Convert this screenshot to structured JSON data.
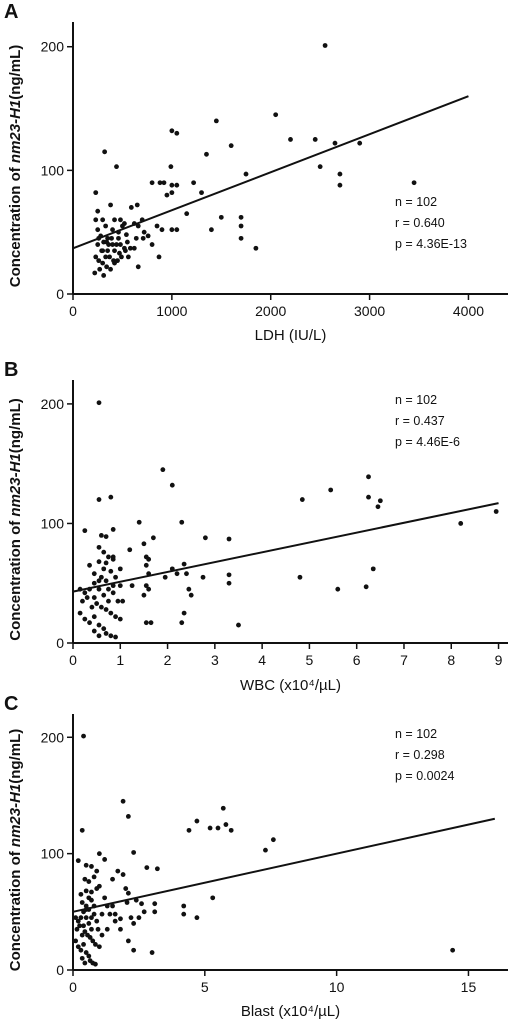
{
  "chart_data": [
    {
      "type": "scatter",
      "panel": "A",
      "xlabel": "LDH (IU/L)",
      "ylabel_parts": [
        "Concentration of ",
        "nm23-H1",
        "(ng/mL)"
      ],
      "xlim": [
        0,
        4400
      ],
      "ylim": [
        0,
        220
      ],
      "xticks": [
        "0",
        "1000",
        "2000",
        "3000",
        "4000"
      ],
      "xtick_values": [
        0,
        1000,
        2000,
        3000,
        4000
      ],
      "yticks": [
        "0",
        "100",
        "200"
      ],
      "ytick_values": [
        0,
        100,
        200
      ],
      "stats": [
        "n = 102",
        "r = 0.640",
        "p = 4.36E-13"
      ],
      "fit": [
        [
          0,
          37
        ],
        [
          4000,
          160
        ]
      ],
      "points": [
        [
          2550,
          201
        ],
        [
          2050,
          145
        ],
        [
          1450,
          140
        ],
        [
          2200,
          125
        ],
        [
          2450,
          125
        ],
        [
          2650,
          122
        ],
        [
          2900,
          122
        ],
        [
          3450,
          90
        ],
        [
          1000,
          132
        ],
        [
          1050,
          130
        ],
        [
          1600,
          120
        ],
        [
          1350,
          113
        ],
        [
          320,
          115
        ],
        [
          440,
          103
        ],
        [
          990,
          103
        ],
        [
          1750,
          97
        ],
        [
          2700,
          97
        ],
        [
          2700,
          88
        ],
        [
          2500,
          103
        ],
        [
          1850,
          37
        ],
        [
          1300,
          82
        ],
        [
          230,
          82
        ],
        [
          800,
          90
        ],
        [
          880,
          90
        ],
        [
          920,
          90
        ],
        [
          1000,
          88
        ],
        [
          1050,
          88
        ],
        [
          950,
          80
        ],
        [
          1220,
          90
        ],
        [
          1000,
          82
        ],
        [
          650,
          72
        ],
        [
          1150,
          65
        ],
        [
          1500,
          62
        ],
        [
          1700,
          62
        ],
        [
          1700,
          55
        ],
        [
          1400,
          52
        ],
        [
          1700,
          45
        ],
        [
          380,
          72
        ],
        [
          250,
          67
        ],
        [
          230,
          60
        ],
        [
          300,
          60
        ],
        [
          420,
          60
        ],
        [
          480,
          60
        ],
        [
          520,
          57
        ],
        [
          620,
          57
        ],
        [
          660,
          55
        ],
        [
          700,
          60
        ],
        [
          850,
          55
        ],
        [
          900,
          52
        ],
        [
          1000,
          52
        ],
        [
          1050,
          52
        ],
        [
          760,
          47
        ],
        [
          640,
          45
        ],
        [
          710,
          45
        ],
        [
          330,
          55
        ],
        [
          350,
          45
        ],
        [
          390,
          45
        ],
        [
          460,
          45
        ],
        [
          550,
          42
        ],
        [
          250,
          52
        ],
        [
          280,
          47
        ],
        [
          310,
          42
        ],
        [
          340,
          42
        ],
        [
          360,
          40
        ],
        [
          400,
          40
        ],
        [
          440,
          40
        ],
        [
          480,
          40
        ],
        [
          520,
          37
        ],
        [
          580,
          37
        ],
        [
          620,
          37
        ],
        [
          250,
          40
        ],
        [
          290,
          35
        ],
        [
          330,
          30
        ],
        [
          370,
          30
        ],
        [
          410,
          27
        ],
        [
          450,
          27
        ],
        [
          490,
          30
        ],
        [
          230,
          30
        ],
        [
          260,
          27
        ],
        [
          300,
          25
        ],
        [
          340,
          22
        ],
        [
          380,
          20
        ],
        [
          270,
          20
        ],
        [
          220,
          17
        ],
        [
          310,
          15
        ],
        [
          530,
          35
        ],
        [
          660,
          22
        ],
        [
          870,
          30
        ],
        [
          800,
          40
        ],
        [
          460,
          50
        ],
        [
          540,
          48
        ],
        [
          720,
          50
        ],
        [
          590,
          70
        ],
        [
          300,
          35
        ],
        [
          350,
          35
        ],
        [
          420,
          35
        ],
        [
          470,
          33
        ],
        [
          560,
          30
        ],
        [
          260,
          45
        ],
        [
          400,
          52
        ],
        [
          500,
          55
        ],
        [
          420,
          25
        ]
      ]
    },
    {
      "type": "scatter",
      "panel": "B",
      "xlabel": "WBC (x10⁴/µL)",
      "ylabel_parts": [
        "Concentration of ",
        "nm23-H1",
        "(ng/mL)"
      ],
      "xlim": [
        0,
        9.2
      ],
      "ylim": [
        0,
        220
      ],
      "xticks": [
        "0",
        "1",
        "2",
        "3",
        "4",
        "5",
        "6",
        "7",
        "8",
        "9"
      ],
      "xtick_values": [
        0,
        1,
        2,
        3,
        4,
        5,
        6,
        7,
        8,
        9
      ],
      "yticks": [
        "0",
        "100",
        "200"
      ],
      "ytick_values": [
        0,
        100,
        200
      ],
      "stats": [
        "n = 102",
        "r = 0.437",
        "p = 4.46E-6"
      ],
      "fit": [
        [
          0,
          43
        ],
        [
          9,
          117
        ]
      ],
      "points": [
        [
          0.55,
          201
        ],
        [
          1.9,
          145
        ],
        [
          2.1,
          132
        ],
        [
          6.25,
          139
        ],
        [
          5.45,
          128
        ],
        [
          4.85,
          120
        ],
        [
          6.25,
          122
        ],
        [
          6.5,
          119
        ],
        [
          6.45,
          114
        ],
        [
          8.95,
          110
        ],
        [
          8.2,
          100
        ],
        [
          0.55,
          120
        ],
        [
          0.8,
          122
        ],
        [
          1.4,
          101
        ],
        [
          1.7,
          88
        ],
        [
          2.3,
          101
        ],
        [
          2.8,
          88
        ],
        [
          3.3,
          87
        ],
        [
          4.8,
          55
        ],
        [
          5.6,
          45
        ],
        [
          6.2,
          47
        ],
        [
          6.35,
          62
        ],
        [
          0.25,
          94
        ],
        [
          0.6,
          90
        ],
        [
          0.7,
          89
        ],
        [
          0.85,
          95
        ],
        [
          0.55,
          80
        ],
        [
          0.65,
          76
        ],
        [
          0.75,
          72
        ],
        [
          0.85,
          72
        ],
        [
          0.55,
          68
        ],
        [
          0.7,
          67
        ],
        [
          0.85,
          70
        ],
        [
          1.0,
          62
        ],
        [
          1.2,
          78
        ],
        [
          1.5,
          83
        ],
        [
          1.55,
          72
        ],
        [
          1.6,
          70
        ],
        [
          1.55,
          65
        ],
        [
          1.6,
          58
        ],
        [
          1.55,
          48
        ],
        [
          1.6,
          45
        ],
        [
          1.5,
          40
        ],
        [
          1.55,
          17
        ],
        [
          1.65,
          17
        ],
        [
          2.1,
          62
        ],
        [
          2.2,
          58
        ],
        [
          2.35,
          66
        ],
        [
          2.4,
          58
        ],
        [
          2.45,
          45
        ],
        [
          2.5,
          40
        ],
        [
          2.35,
          25
        ],
        [
          2.3,
          17
        ],
        [
          2.75,
          55
        ],
        [
          3.3,
          57
        ],
        [
          3.3,
          50
        ],
        [
          3.5,
          15
        ],
        [
          0.15,
          45
        ],
        [
          0.25,
          42
        ],
        [
          0.35,
          45
        ],
        [
          0.45,
          50
        ],
        [
          0.55,
          45
        ],
        [
          0.65,
          40
        ],
        [
          0.75,
          45
        ],
        [
          0.85,
          42
        ],
        [
          1.0,
          48
        ],
        [
          0.2,
          35
        ],
        [
          0.3,
          38
        ],
        [
          0.4,
          30
        ],
        [
          0.5,
          33
        ],
        [
          0.6,
          30
        ],
        [
          0.7,
          28
        ],
        [
          0.8,
          25
        ],
        [
          0.9,
          22
        ],
        [
          1.0,
          20
        ],
        [
          0.15,
          25
        ],
        [
          0.25,
          20
        ],
        [
          0.35,
          17
        ],
        [
          0.45,
          22
        ],
        [
          0.55,
          15
        ],
        [
          0.65,
          12
        ],
        [
          0.7,
          8
        ],
        [
          0.8,
          6
        ],
        [
          0.9,
          5
        ],
        [
          0.45,
          10
        ],
        [
          0.55,
          6
        ],
        [
          0.6,
          55
        ],
        [
          0.7,
          52
        ],
        [
          0.8,
          60
        ],
        [
          0.9,
          55
        ],
        [
          0.45,
          58
        ],
        [
          0.95,
          35
        ],
        [
          0.35,
          65
        ],
        [
          1.05,
          35
        ],
        [
          0.55,
          52
        ],
        [
          0.65,
          62
        ],
        [
          0.75,
          35
        ],
        [
          0.85,
          48
        ],
        [
          0.45,
          38
        ],
        [
          1.25,
          48
        ],
        [
          1.95,
          55
        ]
      ]
    },
    {
      "type": "scatter",
      "panel": "C",
      "xlabel": "Blast (x10⁴/µL)",
      "ylabel_parts": [
        "Concentration of ",
        "nm23-H1",
        "(ng/mL)"
      ],
      "xlim": [
        0,
        16.5
      ],
      "ylim": [
        0,
        220
      ],
      "xticks": [
        "0",
        "5",
        "10",
        "15"
      ],
      "xtick_values": [
        0,
        5,
        10,
        15
      ],
      "yticks": [
        "0",
        "100",
        "200"
      ],
      "ytick_values": [
        0,
        100,
        200
      ],
      "stats": [
        "n = 102",
        "r = 0.298",
        "p = 0.0024"
      ],
      "fit": [
        [
          0,
          50
        ],
        [
          16,
          130
        ]
      ],
      "points": [
        [
          0.4,
          201
        ],
        [
          1.9,
          145
        ],
        [
          2.1,
          132
        ],
        [
          4.7,
          128
        ],
        [
          5.2,
          122
        ],
        [
          5.5,
          122
        ],
        [
          5.7,
          139
        ],
        [
          5.8,
          125
        ],
        [
          6.0,
          120
        ],
        [
          4.4,
          120
        ],
        [
          7.6,
          112
        ],
        [
          7.3,
          103
        ],
        [
          14.4,
          17
        ],
        [
          0.35,
          120
        ],
        [
          1.0,
          100
        ],
        [
          1.7,
          85
        ],
        [
          2.3,
          101
        ],
        [
          2.8,
          88
        ],
        [
          3.2,
          87
        ],
        [
          4.2,
          55
        ],
        [
          4.7,
          45
        ],
        [
          5.3,
          62
        ],
        [
          0.2,
          94
        ],
        [
          0.5,
          90
        ],
        [
          0.7,
          89
        ],
        [
          1.2,
          95
        ],
        [
          0.45,
          78
        ],
        [
          0.6,
          76
        ],
        [
          0.8,
          80
        ],
        [
          1.0,
          72
        ],
        [
          0.5,
          68
        ],
        [
          0.7,
          67
        ],
        [
          0.9,
          70
        ],
        [
          1.2,
          62
        ],
        [
          1.5,
          78
        ],
        [
          1.9,
          82
        ],
        [
          2.0,
          70
        ],
        [
          2.1,
          66
        ],
        [
          2.05,
          58
        ],
        [
          2.2,
          45
        ],
        [
          2.3,
          40
        ],
        [
          1.4,
          48
        ],
        [
          1.6,
          42
        ],
        [
          1.8,
          44
        ],
        [
          2.6,
          57
        ],
        [
          2.7,
          50
        ],
        [
          3.1,
          57
        ],
        [
          3.1,
          50
        ],
        [
          4.2,
          48
        ],
        [
          2.1,
          25
        ],
        [
          2.3,
          17
        ],
        [
          3.0,
          15
        ],
        [
          0.1,
          45
        ],
        [
          0.2,
          42
        ],
        [
          0.3,
          45
        ],
        [
          0.4,
          50
        ],
        [
          0.5,
          45
        ],
        [
          0.6,
          40
        ],
        [
          0.7,
          45
        ],
        [
          0.9,
          42
        ],
        [
          1.1,
          48
        ],
        [
          0.15,
          35
        ],
        [
          0.25,
          38
        ],
        [
          0.35,
          30
        ],
        [
          0.45,
          33
        ],
        [
          0.55,
          30
        ],
        [
          0.65,
          28
        ],
        [
          0.75,
          25
        ],
        [
          0.85,
          22
        ],
        [
          1.0,
          20
        ],
        [
          0.1,
          25
        ],
        [
          0.2,
          20
        ],
        [
          0.3,
          17
        ],
        [
          0.4,
          22
        ],
        [
          0.5,
          15
        ],
        [
          0.6,
          12
        ],
        [
          0.65,
          8
        ],
        [
          0.75,
          6
        ],
        [
          0.85,
          5
        ],
        [
          0.35,
          10
        ],
        [
          0.45,
          6
        ],
        [
          0.5,
          55
        ],
        [
          0.6,
          52
        ],
        [
          0.7,
          60
        ],
        [
          0.8,
          55
        ],
        [
          0.35,
          58
        ],
        [
          0.95,
          35
        ],
        [
          0.3,
          65
        ],
        [
          1.3,
          35
        ],
        [
          0.5,
          52
        ],
        [
          0.6,
          62
        ],
        [
          0.7,
          35
        ],
        [
          0.8,
          48
        ],
        [
          0.4,
          38
        ],
        [
          1.3,
          55
        ],
        [
          1.5,
          55
        ],
        [
          1.6,
          48
        ],
        [
          1.8,
          35
        ],
        [
          2.5,
          45
        ],
        [
          2.4,
          60
        ],
        [
          0.9,
          85
        ],
        [
          1.1,
          30
        ]
      ]
    }
  ]
}
